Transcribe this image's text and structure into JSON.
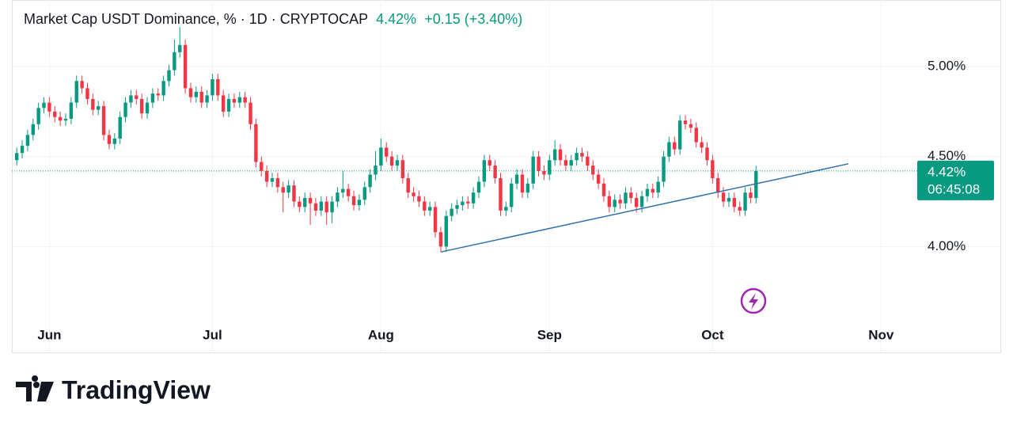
{
  "chart_data": {
    "type": "candlestick",
    "title": "Market Cap USDT Dominance, % · 1D · CRYPTOCAP",
    "last_value_label": "4.42%",
    "change_label": "+0.15 (+3.40%)",
    "countdown": "06:45:08",
    "brand": "TradingView",
    "up_color": "#089981",
    "down_color": "#f23645",
    "trendline_color": "#2f6fb0",
    "grid": true,
    "ylim": [
      3.61,
      5.37
    ],
    "yticks": [
      {
        "value": 4,
        "label": "4.00%"
      },
      {
        "value": 4.5,
        "label": "4.50%"
      },
      {
        "value": 5,
        "label": "5.00%"
      }
    ],
    "xlim": [
      -0.9,
      165.8
    ],
    "xticks": [
      {
        "value": 6,
        "label": "Jun"
      },
      {
        "value": 36,
        "label": "Jul"
      },
      {
        "value": 67,
        "label": "Aug"
      },
      {
        "value": 98,
        "label": "Sep"
      },
      {
        "value": 128,
        "label": "Oct"
      },
      {
        "value": 159,
        "label": "Nov"
      }
    ],
    "trendline": {
      "x": [
        78,
        153
      ],
      "y": [
        3.97,
        4.46
      ]
    },
    "open": [
      4.48,
      4.52,
      4.56,
      4.62,
      4.68,
      4.77,
      4.8,
      4.75,
      4.72,
      4.7,
      4.71,
      4.8,
      4.92,
      4.88,
      4.82,
      4.76,
      4.78,
      4.62,
      4.57,
      4.6,
      4.72,
      4.8,
      4.84,
      4.82,
      4.74,
      4.8,
      4.85,
      4.84,
      4.92,
      4.98,
      5.08,
      5.12,
      4.88,
      4.83,
      4.86,
      4.8,
      4.84,
      4.93,
      4.84,
      4.75,
      4.82,
      4.8,
      4.83,
      4.8,
      4.68,
      4.47,
      4.42,
      4.36,
      4.38,
      4.33,
      4.3,
      4.34,
      4.25,
      4.22,
      4.27,
      4.24,
      4.2,
      4.25,
      4.19,
      4.25,
      4.3,
      4.32,
      4.28,
      4.23,
      4.26,
      4.33,
      4.4,
      4.45,
      4.55,
      4.5,
      4.45,
      4.48,
      4.38,
      4.3,
      4.28,
      4.25,
      4.2,
      4.22,
      4.08,
      4.0,
      4.17,
      4.21,
      4.23,
      4.25,
      4.24,
      4.3,
      4.36,
      4.48,
      4.45,
      4.38,
      4.2,
      4.22,
      4.35,
      4.4,
      4.3,
      4.35,
      4.5,
      4.42,
      4.4,
      4.48,
      4.54,
      4.48,
      4.45,
      4.48,
      4.52,
      4.5,
      4.45,
      4.4,
      4.35,
      4.28,
      4.22,
      4.26,
      4.24,
      4.3,
      4.27,
      4.22,
      4.28,
      4.32,
      4.3,
      4.36,
      4.5,
      4.58,
      4.54,
      4.7,
      4.68,
      4.66,
      4.58,
      4.55,
      4.48,
      4.38,
      4.3,
      4.25,
      4.27,
      4.22,
      4.2,
      4.3,
      4.27
    ],
    "high": [
      4.55,
      4.59,
      4.65,
      4.71,
      4.8,
      4.83,
      4.83,
      4.78,
      4.75,
      4.74,
      4.83,
      4.95,
      4.95,
      4.91,
      4.85,
      4.81,
      4.81,
      4.65,
      4.63,
      4.75,
      4.83,
      4.87,
      4.87,
      4.85,
      4.83,
      4.88,
      4.88,
      4.95,
      5.01,
      5.15,
      5.22,
      5.15,
      4.91,
      4.89,
      4.89,
      4.87,
      4.96,
      4.96,
      4.87,
      4.85,
      4.85,
      4.86,
      4.86,
      4.83,
      4.71,
      4.5,
      4.45,
      4.41,
      4.41,
      4.36,
      4.37,
      4.37,
      4.28,
      4.3,
      4.3,
      4.27,
      4.28,
      4.28,
      4.28,
      4.33,
      4.42,
      4.35,
      4.31,
      4.29,
      4.36,
      4.43,
      4.53,
      4.6,
      4.58,
      4.53,
      4.51,
      4.51,
      4.41,
      4.33,
      4.31,
      4.28,
      4.25,
      4.25,
      4.11,
      4.2,
      4.24,
      4.26,
      4.28,
      4.28,
      4.33,
      4.39,
      4.51,
      4.51,
      4.48,
      4.41,
      4.25,
      4.38,
      4.43,
      4.43,
      4.38,
      4.53,
      4.53,
      4.45,
      4.51,
      4.59,
      4.57,
      4.51,
      4.51,
      4.55,
      4.55,
      4.53,
      4.48,
      4.43,
      4.38,
      4.31,
      4.29,
      4.29,
      4.33,
      4.33,
      4.3,
      4.31,
      4.35,
      4.35,
      4.39,
      4.53,
      4.61,
      4.61,
      4.73,
      4.73,
      4.71,
      4.69,
      4.61,
      4.58,
      4.51,
      4.41,
      4.33,
      4.3,
      4.3,
      4.25,
      4.33,
      4.33,
      4.45
    ],
    "low": [
      4.45,
      4.49,
      4.53,
      4.59,
      4.65,
      4.74,
      4.72,
      4.69,
      4.67,
      4.67,
      4.68,
      4.77,
      4.85,
      4.79,
      4.73,
      4.73,
      4.59,
      4.54,
      4.54,
      4.57,
      4.69,
      4.77,
      4.79,
      4.71,
      4.71,
      4.77,
      4.81,
      4.81,
      4.89,
      4.95,
      5.05,
      4.85,
      4.8,
      4.8,
      4.77,
      4.77,
      4.81,
      4.81,
      4.72,
      4.72,
      4.77,
      4.77,
      4.77,
      4.65,
      4.44,
      4.39,
      4.33,
      4.33,
      4.3,
      4.19,
      4.27,
      4.22,
      4.19,
      4.19,
      4.12,
      4.17,
      4.17,
      4.12,
      4.13,
      4.22,
      4.27,
      4.25,
      4.2,
      4.2,
      4.23,
      4.3,
      4.37,
      4.42,
      4.47,
      4.42,
      4.42,
      4.35,
      4.27,
      4.25,
      4.22,
      4.17,
      4.17,
      4.05,
      3.97,
      3.97,
      4.14,
      4.18,
      4.2,
      4.21,
      4.21,
      4.27,
      4.33,
      4.42,
      4.35,
      4.17,
      4.17,
      4.19,
      4.32,
      4.27,
      4.27,
      4.32,
      4.39,
      4.37,
      4.37,
      4.45,
      4.45,
      4.42,
      4.42,
      4.45,
      4.47,
      4.42,
      4.37,
      4.32,
      4.25,
      4.19,
      4.19,
      4.21,
      4.21,
      4.24,
      4.19,
      4.19,
      4.25,
      4.27,
      4.27,
      4.33,
      4.47,
      4.51,
      4.51,
      4.65,
      4.63,
      4.55,
      4.52,
      4.45,
      4.35,
      4.27,
      4.22,
      4.22,
      4.19,
      4.17,
      4.17,
      4.24,
      4.24
    ],
    "close": [
      4.52,
      4.56,
      4.62,
      4.68,
      4.77,
      4.8,
      4.75,
      4.72,
      4.7,
      4.71,
      4.8,
      4.92,
      4.88,
      4.82,
      4.76,
      4.78,
      4.62,
      4.57,
      4.6,
      4.72,
      4.8,
      4.84,
      4.82,
      4.74,
      4.8,
      4.85,
      4.84,
      4.92,
      4.98,
      5.08,
      5.12,
      4.88,
      4.83,
      4.86,
      4.8,
      4.84,
      4.93,
      4.84,
      4.75,
      4.82,
      4.8,
      4.83,
      4.8,
      4.68,
      4.47,
      4.42,
      4.36,
      4.38,
      4.33,
      4.3,
      4.34,
      4.25,
      4.22,
      4.27,
      4.24,
      4.2,
      4.25,
      4.19,
      4.25,
      4.3,
      4.32,
      4.28,
      4.23,
      4.26,
      4.33,
      4.4,
      4.45,
      4.55,
      4.5,
      4.45,
      4.48,
      4.38,
      4.3,
      4.28,
      4.25,
      4.2,
      4.22,
      4.08,
      4.0,
      4.17,
      4.21,
      4.23,
      4.25,
      4.24,
      4.3,
      4.36,
      4.48,
      4.45,
      4.38,
      4.2,
      4.22,
      4.35,
      4.4,
      4.3,
      4.35,
      4.5,
      4.42,
      4.4,
      4.48,
      4.54,
      4.48,
      4.45,
      4.48,
      4.52,
      4.5,
      4.45,
      4.4,
      4.35,
      4.28,
      4.22,
      4.26,
      4.24,
      4.3,
      4.27,
      4.22,
      4.28,
      4.32,
      4.3,
      4.36,
      4.5,
      4.58,
      4.54,
      4.7,
      4.68,
      4.66,
      4.58,
      4.55,
      4.48,
      4.38,
      4.3,
      4.25,
      4.27,
      4.22,
      4.2,
      4.3,
      4.27,
      4.42
    ]
  }
}
